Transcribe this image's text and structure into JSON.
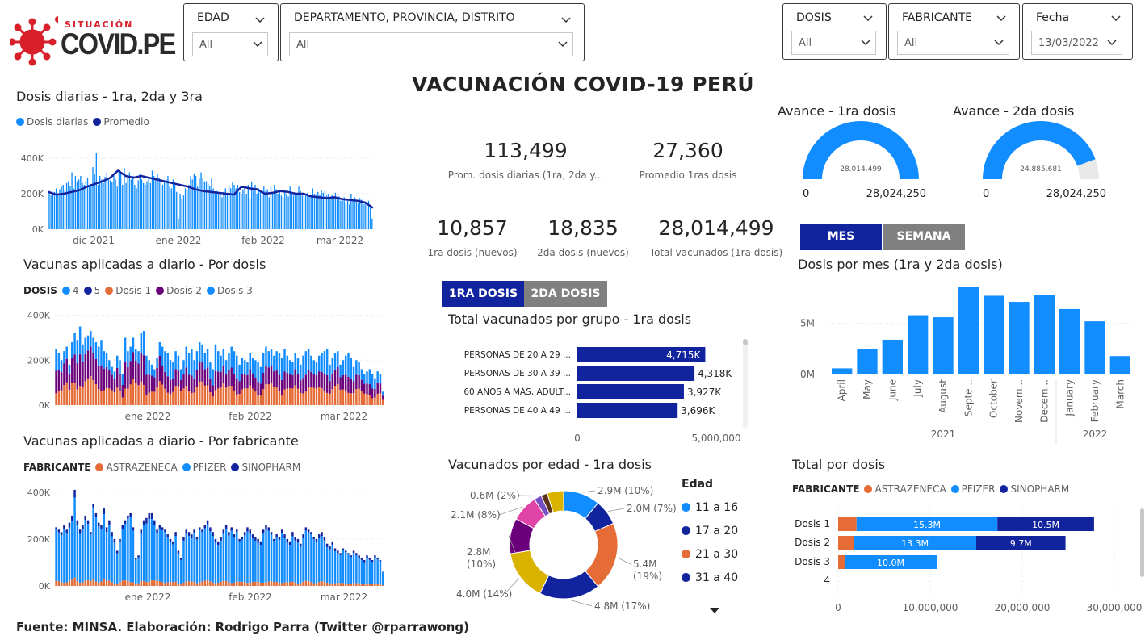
{
  "logo": {
    "top": "SITUACIÓN",
    "main": "COVID.PE"
  },
  "filters": [
    {
      "label": "EDAD",
      "value": "All"
    },
    {
      "label": "DEPARTAMENTO, PROVINCIA, DISTRITO",
      "value": "All"
    },
    {
      "label": "DOSIS",
      "value": "All"
    },
    {
      "label": "FABRICANTE",
      "value": "All"
    },
    {
      "label": "Fecha",
      "value": "13/03/2022"
    }
  ],
  "main_title": "VACUNACIÓN COVID-19 PERÚ",
  "kpis": [
    {
      "value": "113,499",
      "label": "Prom. dosis diarias (1ra, 2da y..."
    },
    {
      "value": "27,360",
      "label": "Promedio 1ras dosis"
    },
    {
      "value": "10,857",
      "label": "1ra dosis (nuevos)"
    },
    {
      "value": "18,835",
      "label": "2da dosis (nuevos)"
    },
    {
      "value": "28,014,499",
      "label": "Total vacunados (1ra dosis)"
    }
  ],
  "toggles": {
    "dose_tabs": [
      "1RA DOSIS",
      "2DA DOSIS"
    ],
    "period_tabs": [
      "MES",
      "SEMANA"
    ]
  },
  "colors": {
    "primary": "#118DFF",
    "navy": "#12239E",
    "orange": "#E66C37",
    "purple": "#6B007B",
    "pink": "#E044A7",
    "yellow": "#D9B300",
    "gray": "#808080"
  },
  "chart_data": [
    {
      "type": "bar",
      "id": "daily",
      "title": "Dosis diarias - 1ra, 2da y 3ra",
      "legend": [
        "Dosis diarias",
        "Promedio"
      ],
      "x_labels": [
        "dic 2021",
        "ene 2022",
        "feb 2022",
        "mar 2022"
      ],
      "y_ticks": [
        "400K",
        "200K",
        "0K"
      ],
      "ylim": [
        0,
        450000
      ],
      "values": [
        215000,
        190000,
        200000,
        210000,
        230000,
        195000,
        225000,
        240000,
        250000,
        220000,
        260000,
        270000,
        245000,
        320000,
        230000,
        300000,
        270000,
        280000,
        300000,
        260000,
        250000,
        270000,
        290000,
        240000,
        255000,
        350000,
        310000,
        430000,
        250000,
        300000,
        280000,
        260000,
        295000,
        320000,
        290000,
        275000,
        265000,
        300000,
        280000,
        240000,
        330000,
        310000,
        250000,
        345000,
        260000,
        290000,
        320000,
        280000,
        300000,
        250000,
        230000,
        275000,
        310000,
        280000,
        260000,
        250000,
        270000,
        290000,
        260000,
        330000,
        300000,
        280000,
        310000,
        290000,
        270000,
        250000,
        265000,
        280000,
        300000,
        240000,
        230000,
        280000,
        250000,
        210000,
        60000,
        200000,
        170000,
        190000,
        230000,
        220000,
        250000,
        300000,
        280000,
        310000,
        300000,
        240000,
        285000,
        320000,
        290000,
        270000,
        270000,
        255000,
        245000,
        285000,
        230000,
        210000,
        215000,
        200000,
        195000,
        180000,
        210000,
        230000,
        195000,
        245000,
        230000,
        265000,
        250000,
        230000,
        250000,
        210000,
        200000,
        225000,
        240000,
        200000,
        250000,
        170000,
        265000,
        220000,
        250000,
        200000,
        230000,
        210000,
        190000,
        240000,
        215000,
        225000,
        180000,
        240000,
        210000,
        250000,
        225000,
        200000,
        215000,
        190000,
        180000,
        210000,
        200000,
        185000,
        240000,
        205000,
        190000,
        200000,
        200000,
        240000,
        215000,
        190000,
        185000,
        200000,
        205000,
        195000,
        185000,
        230000,
        200000,
        195000,
        210000,
        195000,
        220000,
        205000,
        215000,
        190000,
        200000,
        175000,
        195000,
        175000,
        205000,
        170000,
        185000,
        160000,
        175000,
        180000,
        150000,
        160000,
        140000,
        200000,
        170000,
        180000,
        155000,
        150000,
        175000,
        165000,
        140000,
        155000,
        150000,
        160000,
        130000,
        60000
      ],
      "average": [
        210000,
        195000,
        200000,
        210000,
        220000,
        240000,
        255000,
        270000,
        290000,
        330000,
        300000,
        290000,
        300000,
        290000,
        280000,
        270000,
        260000,
        250000,
        240000,
        225000,
        215000,
        210000,
        205000,
        200000,
        195000,
        240000,
        230000,
        225000,
        200000,
        205000,
        215000,
        210000,
        200000,
        200000,
        185000,
        180000,
        175000,
        180000,
        170000,
        165000,
        160000,
        150000,
        120000
      ]
    },
    {
      "type": "bar",
      "id": "by_dose",
      "title": "Vacunas aplicadas a diario - Por dosis",
      "legend_title": "DOSIS",
      "legend": [
        "4",
        "5",
        "Dosis 1",
        "Dosis 2",
        "Dosis 3"
      ],
      "x_labels": [
        "ene 2022",
        "feb 2022",
        "mar 2022"
      ],
      "y_ticks": [
        "400K",
        "200K",
        "0K"
      ],
      "ylim": [
        0,
        420000
      ],
      "values_total": [
        250000,
        230000,
        200000,
        240000,
        260000,
        180000,
        280000,
        320000,
        290000,
        350000,
        270000,
        300000,
        310000,
        330000,
        300000,
        280000,
        260000,
        290000,
        240000,
        230000,
        200000,
        170000,
        150000,
        220000,
        200000,
        140000,
        300000,
        240000,
        260000,
        300000,
        250000,
        240000,
        320000,
        330000,
        220000,
        200000,
        180000,
        160000,
        210000,
        280000,
        260000,
        240000,
        230000,
        200000,
        190000,
        240000,
        220000,
        160000,
        200000,
        260000,
        230000,
        250000,
        200000,
        240000,
        280000,
        270000,
        230000,
        250000,
        190000,
        160000,
        270000,
        240000,
        220000,
        250000,
        200000,
        230000,
        260000,
        240000,
        220000,
        180000,
        210000,
        200000,
        190000,
        230000,
        210000,
        200000,
        190000,
        170000,
        230000,
        260000,
        240000,
        250000,
        220000,
        240000,
        230000,
        210000,
        250000,
        220000,
        200000,
        190000,
        230000,
        210000,
        180000,
        220000,
        240000,
        250000,
        220000,
        200000,
        190000,
        220000,
        230000,
        240000,
        250000,
        180000,
        210000,
        230000,
        240000,
        180000,
        200000,
        220000,
        230000,
        210000,
        170000,
        200000,
        190000,
        160000,
        140000,
        150000,
        160000,
        140000,
        120000,
        150000,
        140000,
        60000
      ],
      "share_dose1": 0.3,
      "share_dose2": 0.35
    },
    {
      "type": "bar",
      "id": "by_manufacturer",
      "title": "Vacunas aplicadas a diario - Por fabricante",
      "legend_title": "FABRICANTE",
      "legend": [
        "ASTRAZENECA",
        "PFIZER",
        "SINOPHARM"
      ],
      "x_labels": [
        "ene 2022",
        "feb 2022",
        "mar 2022"
      ],
      "y_ticks": [
        "400K",
        "200K",
        "0K"
      ],
      "ylim": [
        0,
        420000
      ],
      "values_total": [
        250000,
        240000,
        230000,
        260000,
        240000,
        270000,
        300000,
        410000,
        280000,
        240000,
        260000,
        300000,
        280000,
        230000,
        350000,
        310000,
        270000,
        260000,
        330000,
        250000,
        280000,
        230000,
        200000,
        150000,
        200000,
        260000,
        280000,
        300000,
        310000,
        250000,
        120000,
        130000,
        240000,
        280000,
        290000,
        310000,
        310000,
        280000,
        240000,
        260000,
        250000,
        240000,
        220000,
        200000,
        190000,
        230000,
        150000,
        120000,
        210000,
        240000,
        230000,
        220000,
        240000,
        210000,
        250000,
        240000,
        260000,
        280000,
        250000,
        230000,
        200000,
        190000,
        210000,
        240000,
        260000,
        230000,
        250000,
        220000,
        240000,
        200000,
        210000,
        230000,
        250000,
        240000,
        220000,
        210000,
        200000,
        190000,
        240000,
        260000,
        250000,
        230000,
        200000,
        220000,
        210000,
        240000,
        220000,
        200000,
        190000,
        230000,
        210000,
        200000,
        180000,
        220000,
        250000,
        240000,
        230000,
        210000,
        200000,
        220000,
        230000,
        210000,
        180000,
        170000,
        190000,
        160000,
        150000,
        140000,
        160000,
        150000,
        140000,
        130000,
        150000,
        140000,
        130000,
        120000,
        110000,
        130000,
        120000,
        110000,
        130000,
        120000,
        110000,
        60000
      ],
      "share_astrazeneca": 0.08,
      "share_sinopharm": 0.05
    },
    {
      "type": "bar",
      "id": "group_1ra",
      "title": "Total vacunados por grupo - 1ra dosis",
      "categories": [
        "PERSONAS DE 20 A 29 ...",
        "PERSONAS DE 30 A 39 ...",
        "60 AÑOS A MÁS, ADULT...",
        "PERSONAS DE 40 A 49 ..."
      ],
      "values": [
        4715000,
        4318000,
        3927000,
        3696000
      ],
      "labels": [
        "4,715K",
        "4,318K",
        "3,927K",
        "3,696K"
      ],
      "x_ticks": [
        "0",
        "5,000,000"
      ],
      "xlim": [
        0,
        5000000
      ]
    },
    {
      "type": "pie",
      "id": "age_donut",
      "title": "Vacunados por edad - 1ra dosis",
      "legend_title": "Edad",
      "legend": [
        "11 a 16",
        "17 a 20",
        "21 a 30",
        "31 a 40"
      ],
      "values": [
        2.9,
        2.0,
        5.4,
        4.8,
        4.0,
        2.8,
        2.1,
        0.6,
        0.5,
        1.3
      ],
      "labels": [
        "2.9M (10%)",
        "2.0M (7%)",
        "5.4M (19%)",
        "4.8M (17%)",
        "4.0M (14%)",
        "2.8M (10%)",
        "2.1M (8%)",
        "0.6M (2%)",
        "",
        ""
      ],
      "label_lines": [
        [
          "2.9M (10%)"
        ],
        [
          "2.0M (7%)"
        ],
        [
          "5.4M",
          "(19%)"
        ],
        [
          "4.8M (17%)"
        ],
        [
          "4.0M (14%)"
        ],
        [
          "2.8M",
          "(10%)"
        ],
        [
          "2.1M (8%)"
        ],
        [
          "0.6M (2%)"
        ],
        [],
        []
      ],
      "colors": [
        "#118DFF",
        "#12239E",
        "#E66C37",
        "#12239E",
        "#D9B300",
        "#6B007B",
        "#E044A7",
        "#744EC2",
        "#5C3317",
        "#D9B300"
      ]
    },
    {
      "type": "pie",
      "id": "gauge_1ra",
      "title": "Avance - 1ra dosis",
      "value": 28014499,
      "value_label": "28.014.499",
      "min_label": "0",
      "max_label": "28,024,250",
      "max": 28024250
    },
    {
      "type": "pie",
      "id": "gauge_2da",
      "title": "Avance - 2da dosis",
      "value": 24885681,
      "value_label": "24.885.681",
      "min_label": "0",
      "max_label": "28,024,250",
      "max": 28024250
    },
    {
      "type": "bar",
      "id": "monthly",
      "title": "Dosis por mes (1ra y 2da dosis)",
      "categories": [
        "April",
        "May",
        "June",
        "July",
        "August",
        "Septe...",
        "October",
        "Novem...",
        "Decem...",
        "January",
        "February",
        "March"
      ],
      "values": [
        600000,
        2500000,
        3400000,
        5800000,
        5600000,
        8600000,
        7700000,
        7100000,
        7800000,
        6400000,
        5200000,
        1800000
      ],
      "year_labels": [
        "2021",
        "2022"
      ],
      "y_ticks": [
        "5M",
        "0M"
      ],
      "ylim": [
        0,
        9000000
      ]
    },
    {
      "type": "bar",
      "id": "total_dose",
      "title": "Total por dosis",
      "legend_title": "FABRICANTE",
      "legend": [
        "ASTRAZENECA",
        "PFIZER",
        "SINOPHARM"
      ],
      "categories": [
        "Dosis 1",
        "Dosis 2",
        "Dosis 3",
        "4"
      ],
      "series": [
        {
          "name": "ASTRAZENECA",
          "values": [
            2000000,
            1700000,
            700000,
            0
          ]
        },
        {
          "name": "PFIZER",
          "values": [
            15300000,
            13300000,
            10000000,
            0
          ]
        },
        {
          "name": "SINOPHARM",
          "values": [
            10500000,
            9700000,
            0,
            0
          ]
        }
      ],
      "seg_labels": [
        [
          "",
          "15.3M",
          "10.5M"
        ],
        [
          "",
          "13.3M",
          "9.7M"
        ],
        [
          "",
          "10.0M",
          ""
        ],
        [
          "",
          "",
          ""
        ]
      ],
      "x_ticks": [
        "0",
        "10,000,000",
        "20,000,000",
        "30,000,000"
      ],
      "xlim": [
        0,
        30000000
      ]
    }
  ],
  "footer": "Fuente: MINSA. Elaboración: Rodrigo Parra (Twitter @rparrawong)"
}
